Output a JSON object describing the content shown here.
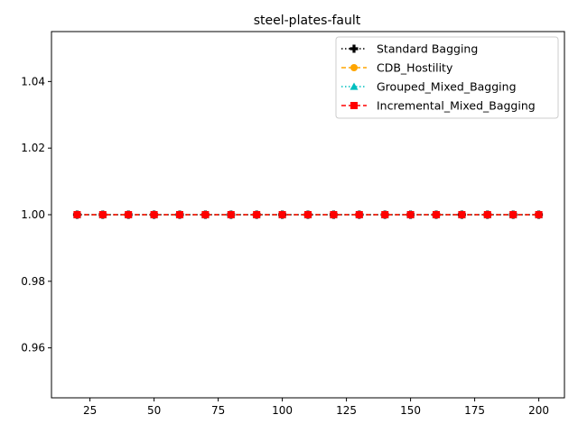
{
  "chart_data": {
    "type": "line",
    "title": "steel-plates-fault",
    "xlabel": "",
    "ylabel": "",
    "xlim": [
      10,
      210
    ],
    "ylim": [
      0.945,
      1.055
    ],
    "x_ticks": [
      25,
      50,
      75,
      100,
      125,
      150,
      175,
      200
    ],
    "y_ticks": [
      0.96,
      0.98,
      1.0,
      1.02,
      1.04
    ],
    "x_tick_labels": [
      "25",
      "50",
      "75",
      "100",
      "125",
      "150",
      "175",
      "200"
    ],
    "y_tick_labels": [
      "0.96",
      "0.98",
      "1.00",
      "1.02",
      "1.04"
    ],
    "x": [
      20,
      30,
      40,
      50,
      60,
      70,
      80,
      90,
      100,
      110,
      120,
      130,
      140,
      150,
      160,
      170,
      180,
      190,
      200
    ],
    "legend_position": "top-right",
    "grid": false,
    "series": [
      {
        "name": "Standard Bagging",
        "color": "#000000",
        "marker": "plus",
        "linestyle": "dotted",
        "values": [
          1,
          1,
          1,
          1,
          1,
          1,
          1,
          1,
          1,
          1,
          1,
          1,
          1,
          1,
          1,
          1,
          1,
          1,
          1
        ]
      },
      {
        "name": "CDB_Hostility",
        "color": "#ffa500",
        "marker": "circle",
        "linestyle": "dashed",
        "values": [
          1,
          1,
          1,
          1,
          1,
          1,
          1,
          1,
          1,
          1,
          1,
          1,
          1,
          1,
          1,
          1,
          1,
          1,
          1
        ]
      },
      {
        "name": "Grouped_Mixed_Bagging",
        "color": "#00bfbf",
        "marker": "triangle",
        "linestyle": "dotted",
        "values": [
          1,
          1,
          1,
          1,
          1,
          1,
          1,
          1,
          1,
          1,
          1,
          1,
          1,
          1,
          1,
          1,
          1,
          1,
          1
        ]
      },
      {
        "name": "Incremental_Mixed_Bagging",
        "color": "#ff0000",
        "marker": "square",
        "linestyle": "dashed",
        "values": [
          1,
          1,
          1,
          1,
          1,
          1,
          1,
          1,
          1,
          1,
          1,
          1,
          1,
          1,
          1,
          1,
          1,
          1,
          1
        ]
      }
    ]
  }
}
